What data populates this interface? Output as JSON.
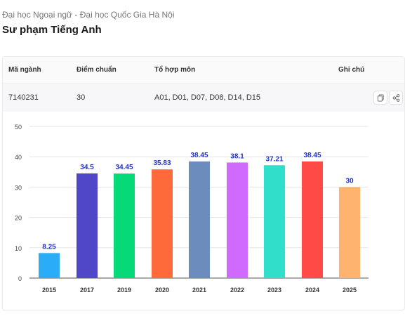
{
  "header": {
    "breadcrumb": "Đại học Ngoại ngữ - Đại học Quốc Gia Hà Nội",
    "title": "Sư phạm Tiếng Anh"
  },
  "table": {
    "columns": [
      "Mã ngành",
      "Điểm chuẩn",
      "Tổ hợp môn",
      "Ghi chú"
    ],
    "row": {
      "code": "7140231",
      "score": "30",
      "subjects": "A01, D01, D07, D08, D14, D15",
      "note": ""
    },
    "actions": {
      "copy_icon": "copy-icon",
      "share_icon": "share-icon"
    }
  },
  "chart_data": {
    "type": "bar",
    "categories": [
      "2015",
      "2017",
      "2019",
      "2020",
      "2021",
      "2022",
      "2023",
      "2024",
      "2025"
    ],
    "values": [
      8.25,
      34.5,
      34.45,
      35.83,
      38.45,
      38.1,
      37.21,
      38.45,
      30
    ],
    "value_labels": [
      "8.25",
      "34.5",
      "34.45",
      "35.83",
      "38.45",
      "38.1",
      "37.21",
      "38.45",
      "30"
    ],
    "colors": [
      "#2aacf6",
      "#5046c8",
      "#06d977",
      "#ff6a3b",
      "#6c8cbe",
      "#d06afe",
      "#2fdfc9",
      "#ff4a46",
      "#feb36f"
    ],
    "y_ticks": [
      "0",
      "10",
      "20",
      "30",
      "40",
      "50"
    ],
    "ylim": [
      0,
      50
    ],
    "grid": true,
    "label_color": "#2233cc",
    "title": "",
    "xlabel": "",
    "ylabel": ""
  }
}
